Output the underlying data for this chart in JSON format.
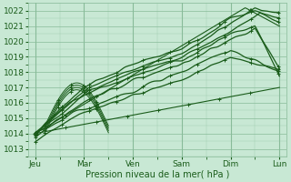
{
  "bg_color": "#c8e8d4",
  "plot_bg_color": "#c8e8d4",
  "grid_color": "#88bb99",
  "line_color": "#1a5c1a",
  "marker_color": "#1a5c1a",
  "tick_color": "#1a5c1a",
  "xlabel_color": "#1a5c1a",
  "ylim": [
    1012.5,
    1022.5
  ],
  "yticks": [
    1013,
    1014,
    1015,
    1016,
    1017,
    1018,
    1019,
    1020,
    1021,
    1022
  ],
  "xlabel": "Pression niveau de la mer( hPa )",
  "xtick_labels": [
    "Jeu",
    "Mar",
    "Ven",
    "Sam",
    "Dim",
    "Lun"
  ],
  "xtick_positions": [
    0,
    1,
    2,
    3,
    4,
    5
  ],
  "xlim": [
    -0.15,
    5.15
  ],
  "figsize": [
    3.2,
    2.0
  ],
  "dpi": 100
}
